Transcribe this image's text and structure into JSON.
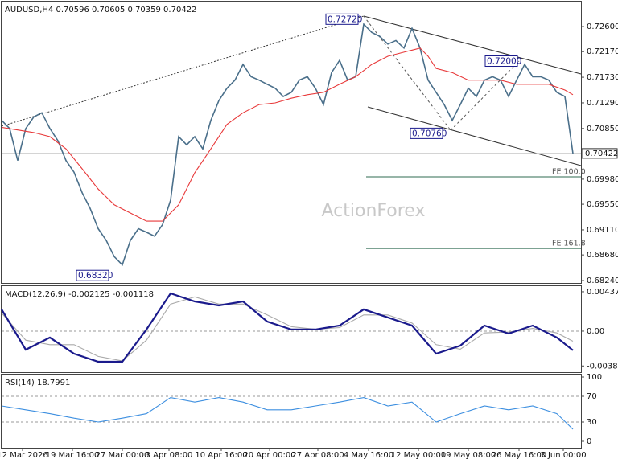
{
  "chart_data": [
    {
      "type": "line",
      "header": "AUDUSD,H4  0.70596 0.70605 0.70359 0.70422",
      "watermark": "ActionForex",
      "xlim": [
        0,
        72
      ],
      "ylim": [
        0.68199,
        0.73028
      ],
      "yticks": [
        {
          "value": 0.726,
          "label": "0.72600"
        },
        {
          "value": 0.7217,
          "label": "0.72170"
        },
        {
          "value": 0.7173,
          "label": "0.71730"
        },
        {
          "value": 0.7129,
          "label": "0.71290"
        },
        {
          "value": 0.7085,
          "label": "0.70850"
        },
        {
          "value": 0.6998,
          "label": "0.69980"
        },
        {
          "value": 0.6955,
          "label": "0.69550"
        },
        {
          "value": 0.6911,
          "label": "0.69110"
        },
        {
          "value": 0.6868,
          "label": "0.68680"
        },
        {
          "value": 0.6824,
          "label": "0.68240"
        }
      ],
      "last_price": {
        "value": 0.70422,
        "label": "0.70422"
      },
      "annotations": [
        {
          "value": 0.7272,
          "label": "0.72720"
        },
        {
          "value": 0.72,
          "label": "0.72000"
        },
        {
          "value": 0.7076,
          "label": "0.70760"
        },
        {
          "value": 0.6832,
          "label": "0.68320"
        },
        {
          "value": 0.7002,
          "label": "FE 100.0"
        },
        {
          "value": 0.6879,
          "label": "FE 161.8"
        }
      ],
      "series": [
        {
          "color": "#4a6f8a",
          "values": [
            0.7099,
            0.7085,
            0.703,
            0.7085,
            0.7105,
            0.7112,
            0.7085,
            0.7064,
            0.703,
            0.701,
            0.6975,
            0.6948,
            0.6913,
            0.6893,
            0.6865,
            0.6851,
            0.6893,
            0.6913,
            0.6907,
            0.69,
            0.692,
            0.6962,
            0.7071,
            0.7057,
            0.7071,
            0.705,
            0.7099,
            0.7133,
            0.7154,
            0.7168,
            0.7195,
            0.7174,
            0.7168,
            0.7161,
            0.7154,
            0.714,
            0.7147,
            0.7168,
            0.7174,
            0.7154,
            0.7126,
            0.7181,
            0.7202,
            0.7168,
            0.7174,
            0.7264,
            0.725,
            0.7243,
            0.723,
            0.7236,
            0.7223,
            0.7257,
            0.7223,
            0.7168,
            0.7147,
            0.7126,
            0.7099,
            0.7126,
            0.7154,
            0.714,
            0.7168,
            0.7174,
            0.7168,
            0.714,
            0.7168,
            0.7195,
            0.7174,
            0.7174,
            0.7168,
            0.7147,
            0.714,
            0.7042
          ]
        },
        {
          "color": "#e8393a",
          "x": [
            0,
            4,
            6,
            8,
            10,
            12,
            14,
            16,
            18,
            20,
            22,
            24,
            26,
            28,
            30,
            32,
            34,
            36,
            38,
            40,
            42,
            44,
            46,
            48,
            50,
            52,
            53,
            54,
            56,
            58,
            60,
            62,
            64,
            66,
            68,
            70,
            71
          ],
          "values": [
            0.7087,
            0.7078,
            0.7071,
            0.705,
            0.7016,
            0.6981,
            0.6954,
            0.694,
            0.6926,
            0.6926,
            0.6954,
            0.7009,
            0.705,
            0.7092,
            0.7112,
            0.7126,
            0.7129,
            0.7137,
            0.7143,
            0.7147,
            0.7161,
            0.7174,
            0.7195,
            0.7209,
            0.7216,
            0.7223,
            0.7209,
            0.7188,
            0.7181,
            0.7168,
            0.7168,
            0.7168,
            0.7161,
            0.7161,
            0.7161,
            0.7151,
            0.7143
          ]
        }
      ]
    },
    {
      "type": "line",
      "header": "MACD(12,26,9) -0.002125 -0.001118",
      "xlim": [
        0,
        72
      ],
      "ylim": [
        -0.00455,
        0.00499
      ],
      "yticks": [
        0.00437,
        {
          "value": 0,
          "label": "0.00"
        },
        -0.003861
      ],
      "series": [
        {
          "color": "#aaaaaa",
          "x": [
            0,
            3,
            6,
            9,
            12,
            15,
            18,
            21,
            24,
            27,
            30,
            33,
            36,
            39,
            42,
            45,
            48,
            51,
            54,
            57,
            60,
            63,
            66,
            69,
            71
          ],
          "values": [
            0.002,
            -0.001,
            -0.0015,
            -0.0015,
            -0.0028,
            -0.0033,
            -0.001,
            0.003,
            0.0038,
            0.003,
            0.003,
            0.0018,
            0.0005,
            0.0002,
            0.0004,
            0.0018,
            0.0018,
            0.0009,
            -0.0015,
            -0.002,
            -0.0002,
            -0.0001,
            0.0003,
            -0.0002,
            -0.001118
          ]
        },
        {
          "color": "#1a1a8c",
          "x": [
            0,
            3,
            6,
            9,
            12,
            15,
            18,
            21,
            24,
            27,
            30,
            33,
            36,
            39,
            42,
            45,
            48,
            51,
            54,
            57,
            60,
            63,
            66,
            69,
            71
          ],
          "values": [
            0.00241,
            -0.00205,
            -0.00071,
            -0.0025,
            -0.00339,
            -0.00339,
            0.00018,
            0.00419,
            0.0033,
            0.00285,
            0.0033,
            0.00107,
            0.00018,
            0.00018,
            0.00062,
            0.00241,
            0.00152,
            0.00062,
            -0.0025,
            -0.00161,
            0.00062,
            -0.00027,
            0.00062,
            -0.00071,
            -0.002125
          ]
        }
      ]
    },
    {
      "type": "line",
      "header": "RSI(14) 18.7991",
      "xlim": [
        0,
        72
      ],
      "ylim": [
        -10,
        103.75
      ],
      "yticks": [
        100,
        70,
        30,
        0
      ],
      "levels": [
        70,
        30
      ],
      "xticks": [
        {
          "value": 2.6,
          "label": "12 Mar 2026"
        },
        {
          "value": 8.8,
          "label": "19 Mar 16:00"
        },
        {
          "value": 15,
          "label": "27 Mar 00:00"
        },
        {
          "value": 20.8,
          "label": "3 Apr 08:00"
        },
        {
          "value": 27.3,
          "label": "10 Apr 16:00"
        },
        {
          "value": 33.3,
          "label": "20 Apr 00:00"
        },
        {
          "value": 39.3,
          "label": "27 Apr 08:00"
        },
        {
          "value": 45.6,
          "label": "4 May 16:00"
        },
        {
          "value": 51.8,
          "label": "12 May 00:00"
        },
        {
          "value": 58,
          "label": "19 May 08:00"
        },
        {
          "value": 64.3,
          "label": "26 May 16:00"
        },
        {
          "value": 69.8,
          "label": "3 Jun 00:00"
        }
      ],
      "series": [
        {
          "color": "#3d8fe0",
          "x": [
            0,
            3,
            6,
            9,
            12,
            15,
            18,
            21,
            24,
            27,
            30,
            33,
            36,
            39,
            42,
            45,
            48,
            51,
            54,
            57,
            60,
            63,
            66,
            69,
            71
          ],
          "values": [
            55,
            49,
            43,
            36,
            30,
            36,
            43,
            68,
            61,
            68,
            61,
            49,
            49,
            55,
            61,
            68,
            55,
            61,
            30,
            43,
            55,
            49,
            55,
            43,
            18.7991
          ]
        }
      ]
    }
  ]
}
